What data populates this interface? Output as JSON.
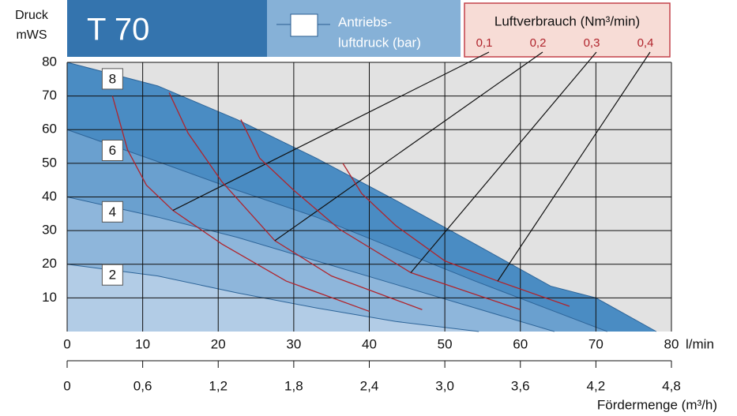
{
  "chart_data": {
    "type": "area",
    "title": "T 70",
    "ylabel": [
      "Druck",
      "mWS"
    ],
    "xlabel": "l/min",
    "x2label": "Fördermenge (m³/h)",
    "legend_title": [
      "Antriebs-",
      "luftdruck (bar)"
    ],
    "air_title": "Luftverbrauch (Nm³/min)",
    "xlim": [
      0,
      80
    ],
    "xticks": [
      0,
      10,
      20,
      30,
      40,
      50,
      60,
      70,
      80
    ],
    "ylim": [
      0,
      80
    ],
    "yticks": [
      10,
      20,
      30,
      40,
      50,
      60,
      70,
      80
    ],
    "x2lim": [
      0,
      4.8
    ],
    "x2ticks": [
      0,
      {
        "value": 0.6,
        "label": "0,6"
      },
      {
        "value": 1.2,
        "label": "1,2"
      },
      {
        "value": 1.8,
        "label": "1,8"
      },
      {
        "value": 2.4,
        "label": "2,4"
      },
      {
        "value": 3.0,
        "label": "3,0"
      },
      {
        "value": 3.6,
        "label": "3,6"
      },
      {
        "value": 4.2,
        "label": "4,2"
      },
      {
        "value": 4.8,
        "label": "4,8"
      }
    ],
    "grid": true,
    "series": [
      {
        "name": "8",
        "group": "pressure",
        "color": "#4a8cc3",
        "x": [
          0,
          12,
          22.5,
          33,
          43.5,
          54,
          64,
          70,
          78
        ],
        "values": [
          80,
          73,
          63,
          51.5,
          39,
          26,
          13.5,
          10,
          0
        ]
      },
      {
        "name": "6",
        "group": "pressure",
        "color": "#6aa0cf",
        "x": [
          0,
          12,
          22.5,
          33,
          43.5,
          54,
          64.5,
          71.5
        ],
        "values": [
          60,
          50.5,
          42,
          34,
          24.5,
          15,
          6,
          0
        ]
      },
      {
        "name": "4",
        "group": "pressure",
        "color": "#8eb6db",
        "x": [
          0,
          12,
          22.5,
          33,
          43.5,
          54,
          64.5
        ],
        "values": [
          40,
          34,
          28,
          21,
          14,
          7,
          0
        ]
      },
      {
        "name": "2",
        "group": "pressure",
        "color": "#b2cce6",
        "x": [
          0,
          12,
          22.5,
          33,
          43.5,
          54.5
        ],
        "values": [
          20,
          16.5,
          11.5,
          7,
          3,
          0
        ]
      },
      {
        "name": "0,1",
        "group": "air",
        "color": "#b0242c",
        "x": [
          6,
          8,
          10.5,
          14,
          20.5,
          29,
          40
        ],
        "values": [
          70,
          54,
          43.5,
          36,
          26,
          15,
          6
        ]
      },
      {
        "name": "0,2",
        "group": "air",
        "color": "#b0242c",
        "x": [
          13.5,
          16,
          20.5,
          27.5,
          35,
          47
        ],
        "values": [
          71,
          59,
          44.5,
          27,
          16.5,
          6.5
        ]
      },
      {
        "name": "0,3",
        "group": "air",
        "color": "#b0242c",
        "x": [
          23,
          25.5,
          30,
          36,
          45.5,
          60
        ],
        "values": [
          63,
          51.5,
          42,
          30.5,
          17.5,
          6.5
        ]
      },
      {
        "name": "0,4",
        "group": "air",
        "color": "#b0242c",
        "x": [
          36.5,
          39,
          43.5,
          50,
          57,
          66.5
        ],
        "values": [
          50,
          41,
          31.5,
          21,
          15,
          7.5
        ]
      }
    ]
  }
}
